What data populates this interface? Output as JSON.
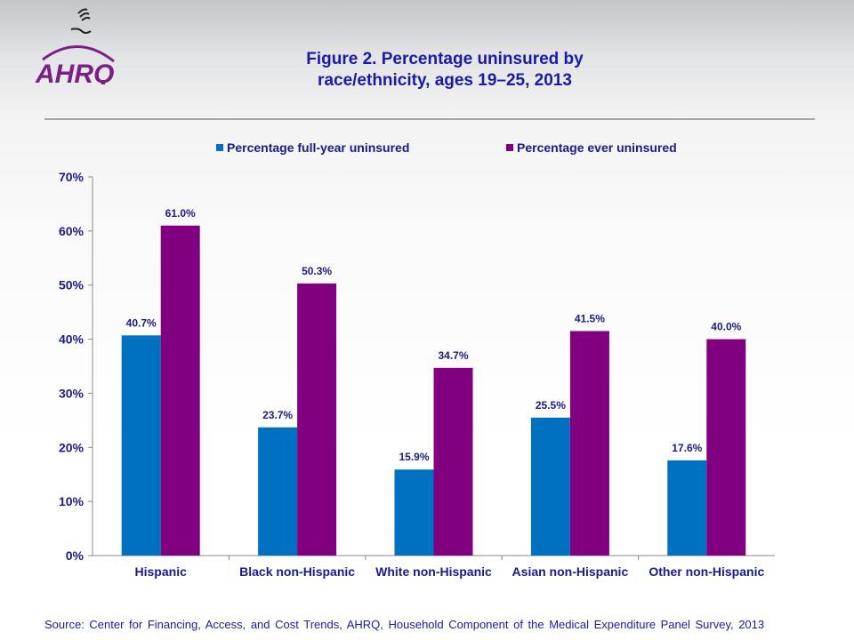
{
  "logo": {
    "text": "AHRQ",
    "color": "#7b1f86"
  },
  "title_line1": "Figure 2. Percentage uninsured by",
  "title_line2": "race/ethnicity, ages 19–25, 2013",
  "source": "Source: Center for Financing, Access, and Cost Trends, AHRQ, Household Component of the Medical Expenditure Panel Survey, 2013",
  "chart_data": {
    "type": "bar",
    "title": "Figure 2. Percentage uninsured by race/ethnicity, ages 19–25, 2013",
    "categories": [
      "Hispanic",
      "Black non-Hispanic",
      "White non-Hispanic",
      "Asian non-Hispanic",
      "Other non-Hispanic"
    ],
    "series": [
      {
        "name": "Percentage full-year uninsured",
        "color": "#0070c0",
        "values": [
          40.7,
          23.7,
          15.9,
          25.5,
          17.6
        ],
        "labels": [
          "40.7%",
          "23.7%",
          "15.9%",
          "25.5%",
          "17.6%"
        ]
      },
      {
        "name": "Percentage ever uninsured",
        "color": "#800080",
        "values": [
          61.0,
          50.3,
          34.7,
          41.5,
          40.0
        ],
        "labels": [
          "61.0%",
          "50.3%",
          "34.7%",
          "41.5%",
          "40.0%"
        ]
      }
    ],
    "ylim": [
      0,
      70
    ],
    "yticks": [
      "0%",
      "10%",
      "20%",
      "30%",
      "40%",
      "50%",
      "60%",
      "70%"
    ],
    "grid": false,
    "legend": "top"
  }
}
